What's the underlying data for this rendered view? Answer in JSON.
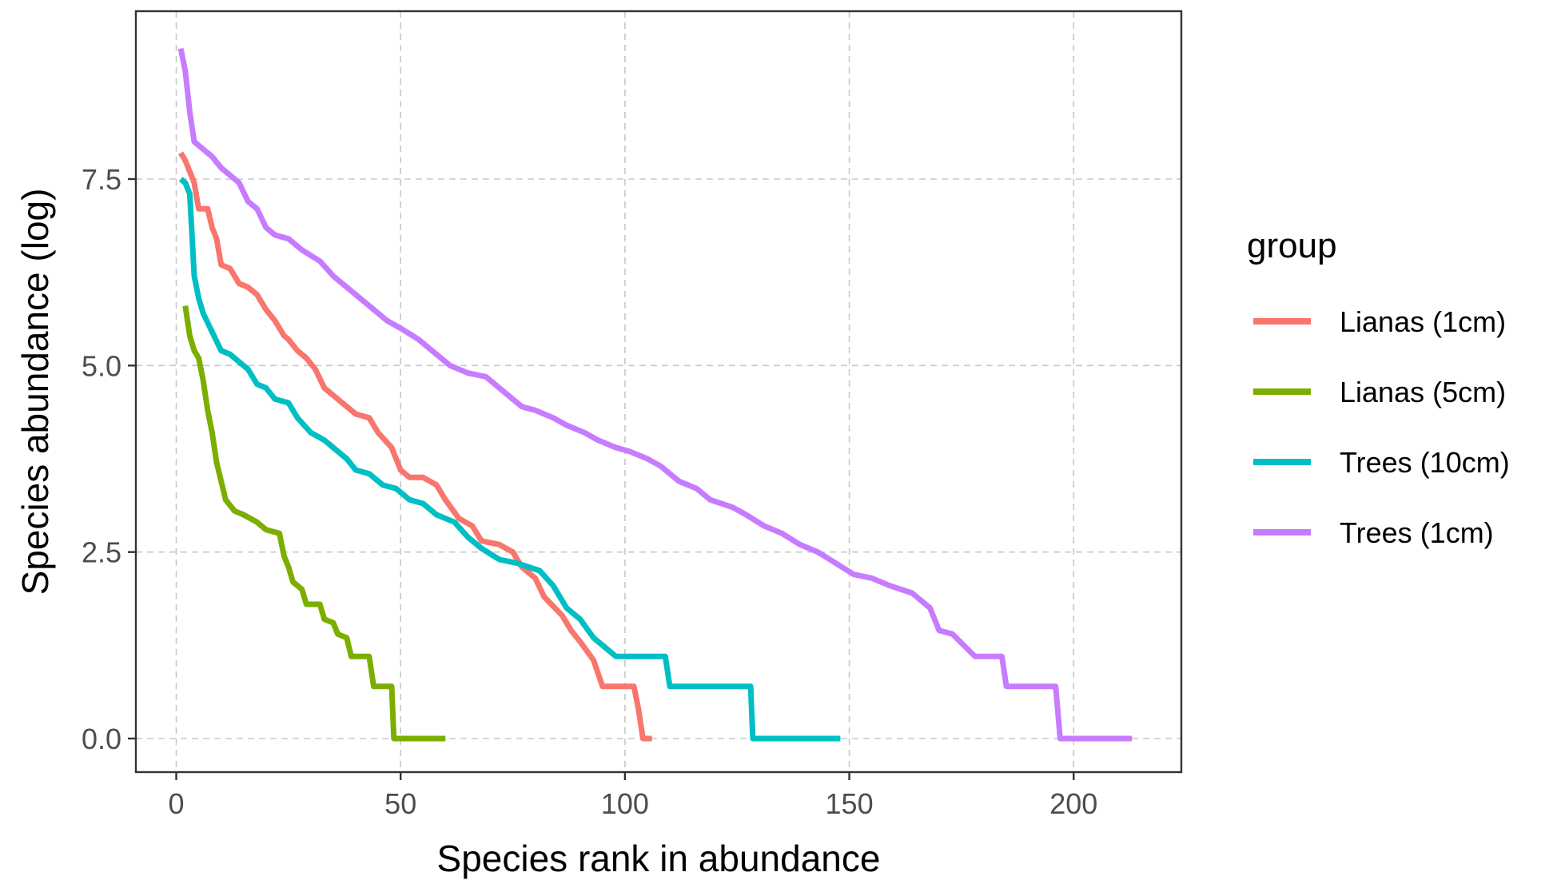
{
  "chart_data": {
    "type": "line",
    "title": "",
    "xlabel": "Species rank in abundance",
    "ylabel": "Species abundance (log)",
    "xlim": [
      -9,
      224
    ],
    "ylim": [
      -0.45,
      9.75
    ],
    "x_ticks": [
      0,
      50,
      100,
      150,
      200
    ],
    "x_tick_labels": [
      "0",
      "50",
      "100",
      "150",
      "200"
    ],
    "y_ticks": [
      0,
      2.5,
      5,
      7.5
    ],
    "y_tick_labels": [
      "0.0",
      "2.5",
      "5.0",
      "7.5"
    ],
    "grid": true,
    "legend": {
      "title": "group",
      "position": "right"
    },
    "series": [
      {
        "name": "Lianas (1cm)",
        "color": "#F8766D",
        "points": [
          [
            1,
            7.85
          ],
          [
            2,
            7.75
          ],
          [
            3,
            7.6
          ],
          [
            4,
            7.45
          ],
          [
            5,
            7.1
          ],
          [
            7,
            7.1
          ],
          [
            8,
            6.85
          ],
          [
            9,
            6.7
          ],
          [
            10,
            6.35
          ],
          [
            12,
            6.3
          ],
          [
            14,
            6.1
          ],
          [
            16,
            6.05
          ],
          [
            18,
            5.95
          ],
          [
            20,
            5.75
          ],
          [
            22,
            5.6
          ],
          [
            24,
            5.4
          ],
          [
            25,
            5.35
          ],
          [
            27,
            5.2
          ],
          [
            29,
            5.1
          ],
          [
            31,
            4.95
          ],
          [
            33,
            4.7
          ],
          [
            35,
            4.6
          ],
          [
            37,
            4.5
          ],
          [
            40,
            4.35
          ],
          [
            43,
            4.3
          ],
          [
            45,
            4.1
          ],
          [
            48,
            3.9
          ],
          [
            50,
            3.6
          ],
          [
            52,
            3.5
          ],
          [
            55,
            3.5
          ],
          [
            58,
            3.4
          ],
          [
            60,
            3.2
          ],
          [
            63,
            2.95
          ],
          [
            66,
            2.85
          ],
          [
            68,
            2.65
          ],
          [
            72,
            2.6
          ],
          [
            75,
            2.5
          ],
          [
            77,
            2.3
          ],
          [
            80,
            2.15
          ],
          [
            82,
            1.9
          ],
          [
            86,
            1.65
          ],
          [
            88,
            1.45
          ],
          [
            90,
            1.3
          ],
          [
            93,
            1.05
          ],
          [
            95,
            0.7
          ],
          [
            102,
            0.7
          ],
          [
            103,
            0.4
          ],
          [
            104,
            0
          ],
          [
            106,
            0
          ]
        ]
      },
      {
        "name": "Lianas (5cm)",
        "color": "#7CAE00",
        "points": [
          [
            2,
            5.8
          ],
          [
            3,
            5.4
          ],
          [
            4,
            5.2
          ],
          [
            5,
            5.1
          ],
          [
            6,
            4.8
          ],
          [
            7,
            4.4
          ],
          [
            8,
            4.1
          ],
          [
            9,
            3.7
          ],
          [
            10,
            3.45
          ],
          [
            11,
            3.2
          ],
          [
            13,
            3.05
          ],
          [
            15,
            3.0
          ],
          [
            18,
            2.9
          ],
          [
            20,
            2.8
          ],
          [
            23,
            2.75
          ],
          [
            24,
            2.45
          ],
          [
            25,
            2.3
          ],
          [
            26,
            2.1
          ],
          [
            28,
            2.0
          ],
          [
            29,
            1.8
          ],
          [
            32,
            1.8
          ],
          [
            33,
            1.6
          ],
          [
            35,
            1.55
          ],
          [
            36,
            1.4
          ],
          [
            38,
            1.35
          ],
          [
            39,
            1.1
          ],
          [
            43,
            1.1
          ],
          [
            44,
            0.7
          ],
          [
            48,
            0.7
          ],
          [
            48.5,
            0
          ],
          [
            60,
            0
          ]
        ]
      },
      {
        "name": "Trees (10cm)",
        "color": "#00BFC4",
        "points": [
          [
            1,
            7.5
          ],
          [
            2,
            7.45
          ],
          [
            3,
            7.3
          ],
          [
            4,
            6.2
          ],
          [
            5,
            5.9
          ],
          [
            6,
            5.7
          ],
          [
            8,
            5.45
          ],
          [
            10,
            5.2
          ],
          [
            12,
            5.15
          ],
          [
            14,
            5.05
          ],
          [
            16,
            4.95
          ],
          [
            18,
            4.75
          ],
          [
            20,
            4.7
          ],
          [
            22,
            4.55
          ],
          [
            25,
            4.5
          ],
          [
            27,
            4.3
          ],
          [
            30,
            4.1
          ],
          [
            33,
            4.0
          ],
          [
            35,
            3.9
          ],
          [
            38,
            3.75
          ],
          [
            40,
            3.6
          ],
          [
            43,
            3.55
          ],
          [
            46,
            3.4
          ],
          [
            49,
            3.35
          ],
          [
            52,
            3.2
          ],
          [
            55,
            3.15
          ],
          [
            58,
            3.0
          ],
          [
            62,
            2.9
          ],
          [
            65,
            2.7
          ],
          [
            68,
            2.55
          ],
          [
            72,
            2.4
          ],
          [
            76,
            2.35
          ],
          [
            81,
            2.25
          ],
          [
            84,
            2.05
          ],
          [
            87,
            1.75
          ],
          [
            90,
            1.6
          ],
          [
            93,
            1.35
          ],
          [
            98,
            1.1
          ],
          [
            109,
            1.1
          ],
          [
            110,
            0.7
          ],
          [
            128,
            0.7
          ],
          [
            128.5,
            0
          ],
          [
            148,
            0
          ]
        ]
      },
      {
        "name": "Trees (1cm)",
        "color": "#C77CFF",
        "points": [
          [
            1,
            9.25
          ],
          [
            2,
            8.95
          ],
          [
            3,
            8.4
          ],
          [
            4,
            8.0
          ],
          [
            6,
            7.9
          ],
          [
            8,
            7.8
          ],
          [
            10,
            7.65
          ],
          [
            12,
            7.55
          ],
          [
            14,
            7.45
          ],
          [
            16,
            7.2
          ],
          [
            18,
            7.1
          ],
          [
            20,
            6.85
          ],
          [
            22,
            6.75
          ],
          [
            25,
            6.7
          ],
          [
            28,
            6.55
          ],
          [
            32,
            6.4
          ],
          [
            35,
            6.2
          ],
          [
            38,
            6.05
          ],
          [
            41,
            5.9
          ],
          [
            44,
            5.75
          ],
          [
            47,
            5.6
          ],
          [
            50,
            5.5
          ],
          [
            54,
            5.35
          ],
          [
            57,
            5.2
          ],
          [
            61,
            5.0
          ],
          [
            65,
            4.9
          ],
          [
            69,
            4.85
          ],
          [
            72,
            4.7
          ],
          [
            74,
            4.6
          ],
          [
            77,
            4.45
          ],
          [
            80,
            4.4
          ],
          [
            84,
            4.3
          ],
          [
            87,
            4.2
          ],
          [
            91,
            4.1
          ],
          [
            94,
            4.0
          ],
          [
            98,
            3.9
          ],
          [
            101,
            3.85
          ],
          [
            105,
            3.75
          ],
          [
            108,
            3.65
          ],
          [
            112,
            3.45
          ],
          [
            116,
            3.35
          ],
          [
            119,
            3.2
          ],
          [
            124,
            3.1
          ],
          [
            127,
            3.0
          ],
          [
            131,
            2.85
          ],
          [
            135,
            2.75
          ],
          [
            139,
            2.6
          ],
          [
            143,
            2.5
          ],
          [
            147,
            2.35
          ],
          [
            151,
            2.2
          ],
          [
            155,
            2.15
          ],
          [
            159,
            2.05
          ],
          [
            164,
            1.95
          ],
          [
            168,
            1.75
          ],
          [
            170,
            1.45
          ],
          [
            173,
            1.4
          ],
          [
            178,
            1.1
          ],
          [
            184,
            1.1
          ],
          [
            185,
            0.7
          ],
          [
            196,
            0.7
          ],
          [
            197,
            0
          ],
          [
            213,
            0
          ]
        ]
      }
    ]
  }
}
